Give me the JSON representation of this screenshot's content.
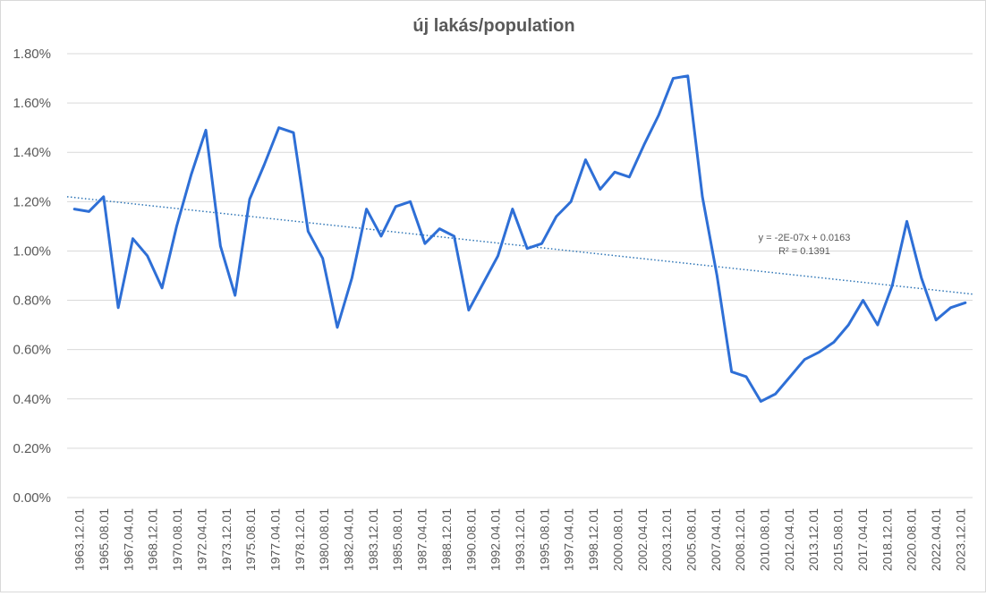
{
  "chart_data": {
    "type": "line",
    "title": "új lakás/population",
    "ylim": [
      0,
      0.018
    ],
    "yticks": [
      "0.00%",
      "0.20%",
      "0.40%",
      "0.60%",
      "0.80%",
      "1.00%",
      "1.20%",
      "1.40%",
      "1.60%",
      "1.80%"
    ],
    "xtick_labels": [
      "1963.12.01",
      "1965.08.01",
      "1967.04.01",
      "1968.12.01",
      "1970.08.01",
      "1972.04.01",
      "1973.12.01",
      "1975.08.01",
      "1977.04.01",
      "1978.12.01",
      "1980.08.01",
      "1982.04.01",
      "1983.12.01",
      "1985.08.01",
      "1987.04.01",
      "1988.12.01",
      "1990.08.01",
      "1992.04.01",
      "1993.12.01",
      "1995.08.01",
      "1997.04.01",
      "1998.12.01",
      "2000.08.01",
      "2002.04.01",
      "2003.12.01",
      "2005.08.01",
      "2007.04.01",
      "2008.12.01",
      "2010.08.01",
      "2012.04.01",
      "2013.12.01",
      "2015.08.01",
      "2017.04.01",
      "2018.12.01",
      "2020.08.01",
      "2022.04.01",
      "2023.12.01"
    ],
    "series": [
      {
        "values": [
          0.0117,
          0.0116,
          0.0122,
          0.0077,
          0.0105,
          0.0098,
          0.0085,
          0.011,
          0.0131,
          0.0149,
          0.0102,
          0.0082,
          0.0121,
          0.0135,
          0.015,
          0.0148,
          0.0108,
          0.0097,
          0.0069,
          0.0089,
          0.0117,
          0.0106,
          0.0118,
          0.012,
          0.0103,
          0.0109,
          0.0106,
          0.0076,
          0.0087,
          0.0098,
          0.0117,
          0.0101,
          0.0103,
          0.0114,
          0.012,
          0.0137,
          0.0125,
          0.0132,
          0.013,
          0.0143,
          0.0155,
          0.017,
          0.0171,
          0.0122,
          0.009,
          0.0051,
          0.0049,
          0.0039,
          0.0042,
          0.0049,
          0.0056,
          0.0059,
          0.0063,
          0.007,
          0.008,
          0.007,
          0.0086,
          0.0112,
          0.0089,
          0.0072,
          0.0077,
          0.0079
        ],
        "color": "#2e6fd6"
      }
    ],
    "trendline": {
      "equation": "y = -2E-07x + 0.0163",
      "r_squared": "R² = 0.1391",
      "start": 0.0122,
      "end": 0.00825,
      "color": "#2e75b6"
    },
    "grid": true,
    "legend": "none"
  }
}
